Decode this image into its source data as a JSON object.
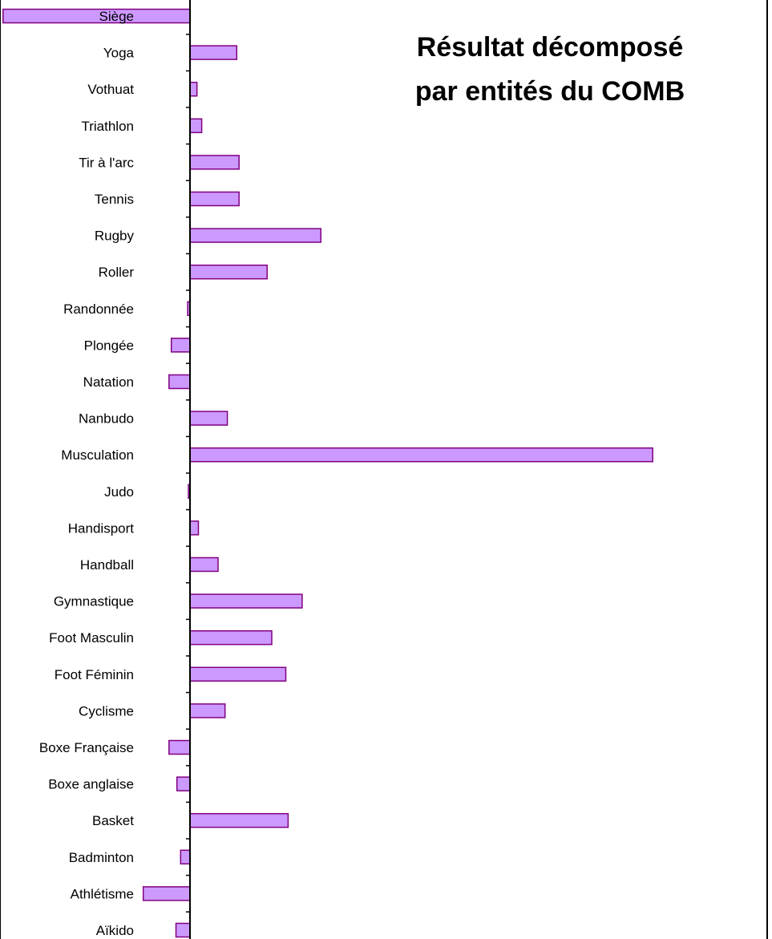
{
  "title_lines": [
    "Résultat décomposé",
    "par entités du COMB"
  ],
  "colors": {
    "bar_fill": "#cc99ff",
    "bar_stroke": "#800080",
    "axis": "#000000",
    "frame": "#000000",
    "background": "#ffffff"
  },
  "chart_data": {
    "type": "bar",
    "orientation": "horizontal",
    "title": "Résultat décomposé par entités du COMB",
    "xlabel": "",
    "ylabel": "",
    "grid": false,
    "legend": "none",
    "category_order": "top-to-bottom",
    "xlim": [
      -40,
      140
    ],
    "categories": [
      "Siège",
      "Yoga",
      "Vothuat",
      "Triathlon",
      "Tir à l'arc",
      "Tennis",
      "Rugby",
      "Roller",
      "Randonnée",
      "Plongée",
      "Natation",
      "Nanbudo",
      "Musculation",
      "Judo",
      "Handisport",
      "Handball",
      "Gymnastique",
      "Foot Masculin",
      "Foot Féminin",
      "Cyclisme",
      "Boxe Française",
      "Boxe anglaise",
      "Basket",
      "Badminton",
      "Athlétisme",
      "Aïkido"
    ],
    "values": [
      -40,
      10,
      1.5,
      2.5,
      10.5,
      10.5,
      28,
      16.5,
      -0.5,
      -4,
      -4.5,
      8,
      99,
      -0.3,
      1.8,
      6,
      24,
      17.5,
      20.5,
      7.5,
      -4.5,
      -2.8,
      21,
      -2,
      -10,
      -3
    ]
  }
}
